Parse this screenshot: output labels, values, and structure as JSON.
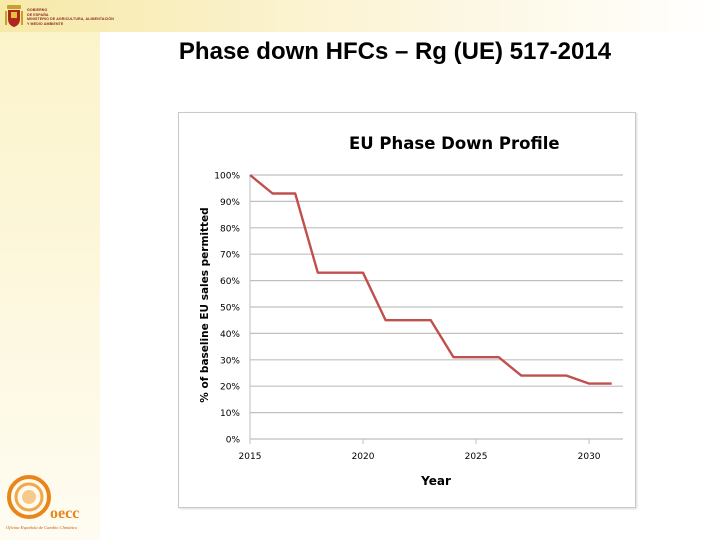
{
  "header": {
    "ministry_lines": [
      "GOBIERNO",
      "DE ESPAÑA",
      "MINISTERIO DE AGRICULTURA, ALIMENTACIÓN",
      "Y MEDIO AMBIENTE"
    ]
  },
  "slide": {
    "title": "Phase down HFCs – Rg (UE) 517-2014"
  },
  "logo": {
    "text": "oecc",
    "subtitle": "Oficina Española de Cambio Climático"
  },
  "colors": {
    "line": "#c0504d",
    "grid": "#bfbfbf",
    "logo": "#e8861c"
  },
  "chart_data": {
    "type": "line",
    "title": "EU Phase Down Profile",
    "xlabel": "Year",
    "ylabel": "% of baseline EU sales permitted",
    "xlim": [
      2015,
      2031.5
    ],
    "ylim": [
      0,
      100
    ],
    "x_ticks": [
      2015,
      2020,
      2025,
      2030
    ],
    "y_ticks": [
      0,
      10,
      20,
      30,
      40,
      50,
      60,
      70,
      80,
      90,
      100
    ],
    "y_tick_labels": [
      "0%",
      "10%",
      "20%",
      "30%",
      "40%",
      "50%",
      "60%",
      "70%",
      "80%",
      "90%",
      "100%"
    ],
    "grid": true,
    "series": [
      {
        "name": "EU Phase Down Profile",
        "x": [
          2015,
          2016,
          2017,
          2018,
          2020,
          2021,
          2023,
          2024,
          2026,
          2027,
          2029,
          2030,
          2031
        ],
        "y": [
          100,
          93,
          93,
          63,
          63,
          45,
          45,
          31,
          31,
          24,
          24,
          21,
          21
        ]
      }
    ]
  }
}
